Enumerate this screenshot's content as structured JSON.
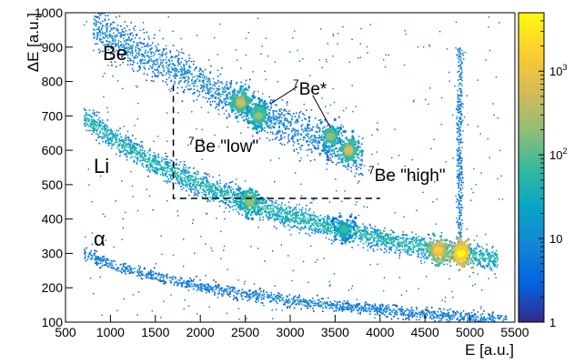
{
  "chart_data": {
    "type": "heatmap",
    "title": "",
    "xlabel": "E [a.u.]",
    "ylabel": "ΔE [a.u.]",
    "xlim": [
      500,
      5500
    ],
    "ylim": [
      100,
      1000
    ],
    "xticks": [
      500,
      1000,
      1500,
      2000,
      2500,
      3000,
      3500,
      4000,
      4500,
      5000,
      5500
    ],
    "yticks": [
      100,
      200,
      300,
      400,
      500,
      600,
      700,
      800,
      900,
      1000
    ],
    "colorbar": {
      "scale": "log",
      "range": [
        1,
        5000
      ],
      "tick_labels": [
        {
          "value": 1,
          "label": "1"
        },
        {
          "value": 10,
          "label": "10"
        },
        {
          "value": 100,
          "label": "10",
          "exp": "2"
        },
        {
          "value": 1000,
          "label": "10",
          "exp": "3"
        }
      ],
      "colors": [
        "#352a87",
        "#0363e1",
        "#1485d4",
        "#06a7c6",
        "#38b99e",
        "#92bf73",
        "#d9ba56",
        "#fcce2e",
        "#f9fb0e"
      ]
    },
    "bands": [
      {
        "name": "α",
        "points": [
          [
            700,
            300
          ],
          [
            1000,
            270
          ],
          [
            1500,
            235
          ],
          [
            2000,
            205
          ],
          [
            2500,
            183
          ],
          [
            3000,
            165
          ],
          [
            3500,
            150
          ],
          [
            4000,
            138
          ],
          [
            4500,
            125
          ],
          [
            5000,
            115
          ],
          [
            5400,
            108
          ]
        ]
      },
      {
        "name": "Li",
        "points": [
          [
            700,
            700
          ],
          [
            1000,
            640
          ],
          [
            1500,
            560
          ],
          [
            2000,
            500
          ],
          [
            2500,
            450
          ],
          [
            3000,
            410
          ],
          [
            3500,
            375
          ],
          [
            4000,
            345
          ],
          [
            4500,
            320
          ],
          [
            4900,
            300
          ],
          [
            5300,
            285
          ]
        ]
      },
      {
        "name": "Be",
        "points": [
          [
            800,
            960
          ],
          [
            1500,
            860
          ],
          [
            2000,
            800
          ],
          [
            2500,
            730
          ],
          [
            3000,
            670
          ],
          [
            3500,
            620
          ],
          [
            3800,
            580
          ]
        ]
      }
    ],
    "hotspots": [
      {
        "x": 4900,
        "y": 300,
        "counts": 5000
      },
      {
        "x": 4650,
        "y": 310,
        "counts": 1500
      },
      {
        "x": 2550,
        "y": 450,
        "counts": 300
      },
      {
        "x": 2450,
        "y": 740,
        "counts": 400
      },
      {
        "x": 2650,
        "y": 700,
        "counts": 250
      },
      {
        "x": 3650,
        "y": 600,
        "counts": 350
      },
      {
        "x": 3450,
        "y": 640,
        "counts": 200
      },
      {
        "x": 3600,
        "y": 370,
        "counts": 80
      }
    ],
    "vertical_streak": {
      "x": 4880,
      "y_range": [
        280,
        900
      ]
    },
    "annotations": {
      "be": "Be",
      "li": "Li",
      "alpha": "α",
      "be7_star": {
        "sup": "7",
        "text": "Be*"
      },
      "be7_low": {
        "sup": "7",
        "text": "Be \"low\""
      },
      "be7_high": {
        "sup": "7",
        "text": "Be \"high\""
      }
    },
    "dashed_box": {
      "x": [
        1700,
        4000
      ],
      "y": [
        460,
        790
      ]
    }
  }
}
